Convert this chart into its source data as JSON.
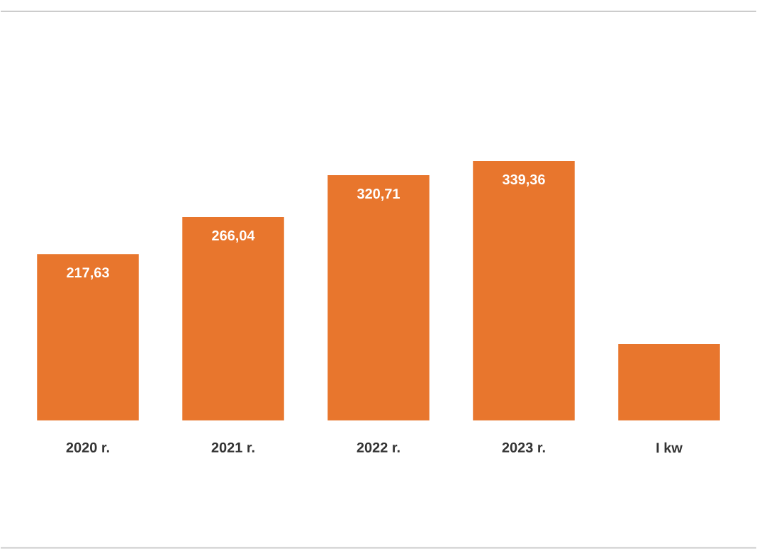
{
  "chart_data": {
    "type": "bar",
    "categories": [
      "2020 r.",
      "2021 r.",
      "2022 r.",
      "2023 r.",
      "I kw"
    ],
    "values": [
      217.63,
      266.04,
      320.71,
      339.36,
      100
    ],
    "value_labels": [
      "217,63",
      "266,04",
      "320,71",
      "339,36",
      null
    ],
    "color": "#e8762d"
  }
}
